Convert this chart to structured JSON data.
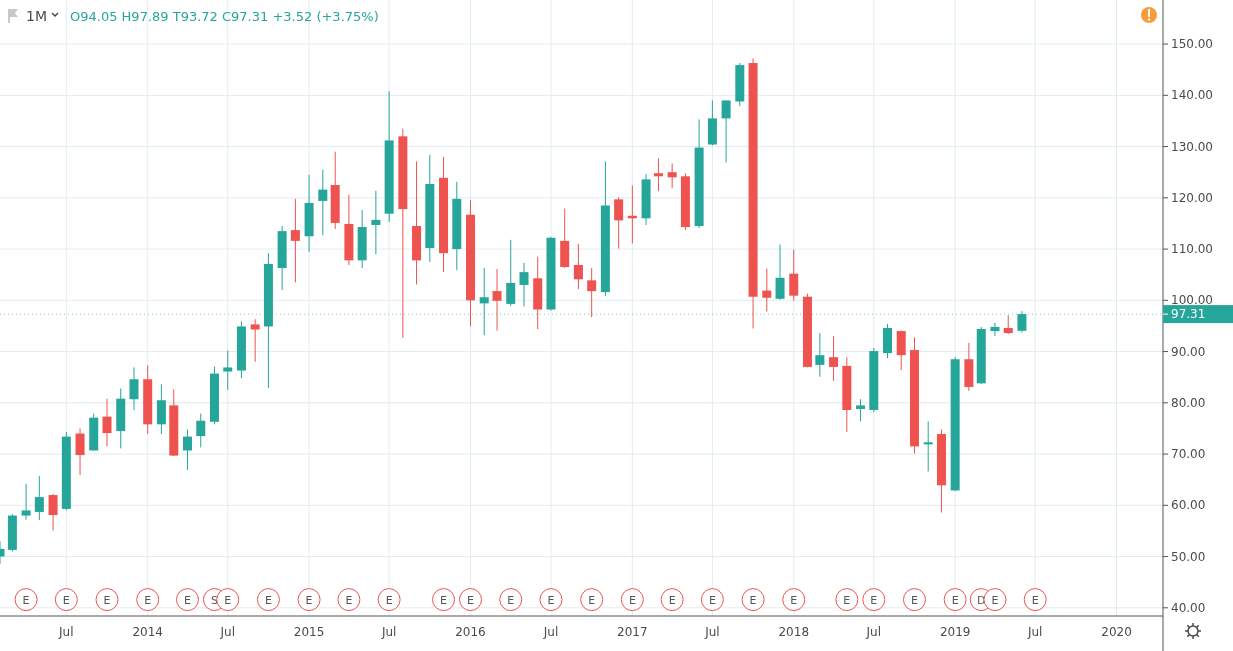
{
  "chart_data": {
    "type": "candlestick",
    "title": "1M",
    "subtitle": "O94.05 H97.89 T93.72 C97.31 +3.52 (+3.75%)",
    "x": [
      "2013-02",
      "2013-03",
      "2013-04",
      "2013-05",
      "2013-06",
      "2013-07",
      "2013-08",
      "2013-09",
      "2013-10",
      "2013-11",
      "2013-12",
      "2014-01",
      "2014-02",
      "2014-03",
      "2014-04",
      "2014-05",
      "2014-06",
      "2014-07",
      "2014-08",
      "2014-09",
      "2014-10",
      "2014-11",
      "2014-12",
      "2015-01",
      "2015-02",
      "2015-03",
      "2015-04",
      "2015-05",
      "2015-06",
      "2015-07",
      "2015-08",
      "2015-09",
      "2015-10",
      "2015-11",
      "2015-12",
      "2016-01",
      "2016-02",
      "2016-03",
      "2016-04",
      "2016-05",
      "2016-06",
      "2016-07",
      "2016-08",
      "2016-09",
      "2016-10",
      "2016-11",
      "2016-12",
      "2017-01",
      "2017-02",
      "2017-03",
      "2017-04",
      "2017-05",
      "2017-06",
      "2017-07",
      "2017-08",
      "2017-09",
      "2017-10",
      "2017-11",
      "2017-12",
      "2018-01",
      "2018-02",
      "2018-03",
      "2018-04",
      "2018-05",
      "2018-06",
      "2018-07",
      "2018-08",
      "2018-09",
      "2018-10",
      "2018-11",
      "2018-12",
      "2019-01",
      "2019-02",
      "2019-03",
      "2019-04",
      "2019-05",
      "2019-06"
    ],
    "ohlc": [
      [
        50,
        53,
        48.6,
        51.5
      ],
      [
        51.3,
        58.3,
        51,
        58
      ],
      [
        58,
        64.2,
        57.2,
        59
      ],
      [
        58.7,
        65.7,
        57.1,
        61.6
      ],
      [
        62,
        62.2,
        55.1,
        58.1
      ],
      [
        59.3,
        74.3,
        59,
        73.4
      ],
      [
        74,
        75,
        65.9,
        69.8
      ],
      [
        70.7,
        77.9,
        70.7,
        77.1
      ],
      [
        77.3,
        80.8,
        71.5,
        74.1
      ],
      [
        74.5,
        82.8,
        71.1,
        80.8
      ],
      [
        80.7,
        86.9,
        78.6,
        84.6
      ],
      [
        84.6,
        87.3,
        73.9,
        75.8
      ],
      [
        75.8,
        83.6,
        73.9,
        80.5
      ],
      [
        79.5,
        82.6,
        69.6,
        69.7
      ],
      [
        70.7,
        74.8,
        66.9,
        73.4
      ],
      [
        73.5,
        77.9,
        71.3,
        76.5
      ],
      [
        76.3,
        87.1,
        75.8,
        85.7
      ],
      [
        86.1,
        90.2,
        82.5,
        86.9
      ],
      [
        86.3,
        95.9,
        84.8,
        94.9
      ],
      [
        95.3,
        96.3,
        88,
        94.3
      ],
      [
        94.9,
        109.2,
        82.9,
        107.1
      ],
      [
        106.3,
        114.5,
        102,
        113.5
      ],
      [
        113.7,
        119.8,
        103.5,
        111.6
      ],
      [
        112.5,
        124.5,
        109.4,
        119
      ],
      [
        119.4,
        125.5,
        112.7,
        121.6
      ],
      [
        122.5,
        129,
        113.9,
        115.1
      ],
      [
        114.9,
        120.6,
        106.9,
        107.8
      ],
      [
        107.8,
        117.6,
        106.3,
        114.3
      ],
      [
        114.7,
        121.4,
        109,
        115.7
      ],
      [
        116.9,
        140.8,
        115.3,
        131.2
      ],
      [
        132,
        133.5,
        92.7,
        117.8
      ],
      [
        114.5,
        127.1,
        103.1,
        107.8
      ],
      [
        110.2,
        128.4,
        107.5,
        122.7
      ],
      [
        123.9,
        128,
        105.5,
        109.2
      ],
      [
        110,
        123.1,
        105.9,
        119.8
      ],
      [
        116.7,
        119.6,
        94.9,
        100
      ],
      [
        99.4,
        106.3,
        93.2,
        100.6
      ],
      [
        101.8,
        106.1,
        94.1,
        99.9
      ],
      [
        99.3,
        111.8,
        98.9,
        103.4
      ],
      [
        103,
        107.3,
        98.8,
        105.5
      ],
      [
        104.3,
        108.5,
        94.4,
        98.2
      ],
      [
        98.2,
        112.4,
        98,
        112.2
      ],
      [
        111.6,
        117.9,
        106.3,
        106.5
      ],
      [
        106.9,
        111,
        102.2,
        104.1
      ],
      [
        103.9,
        106.3,
        96.7,
        101.8
      ],
      [
        101.6,
        127.1,
        100.8,
        118.5
      ],
      [
        119.7,
        120.1,
        110.1,
        115.6
      ],
      [
        116.5,
        122.4,
        111.1,
        116
      ],
      [
        116,
        124.6,
        114.7,
        123.6
      ],
      [
        124.8,
        127.7,
        121.3,
        124.2
      ],
      [
        125,
        126.7,
        121.9,
        124
      ],
      [
        124.2,
        124.8,
        113.7,
        114.3
      ],
      [
        114.5,
        135.3,
        114.1,
        129.8
      ],
      [
        130.4,
        139,
        130.2,
        135.5
      ],
      [
        135.5,
        139,
        126.9,
        139
      ],
      [
        138.8,
        146.3,
        137.9,
        145.9
      ],
      [
        146.3,
        147.2,
        94.5,
        100.7
      ],
      [
        101.9,
        106.2,
        97.8,
        100.5
      ],
      [
        100.3,
        110.9,
        100.1,
        104.4
      ],
      [
        105.2,
        109.9,
        99.9,
        100.9
      ],
      [
        100.7,
        101.3,
        86.9,
        87
      ],
      [
        87.4,
        93.6,
        85.1,
        89.3
      ],
      [
        88.9,
        93,
        84.3,
        87
      ],
      [
        87.2,
        88.9,
        74.3,
        78.6
      ],
      [
        78.8,
        80.7,
        76.4,
        79.5
      ],
      [
        78.6,
        90.7,
        78.2,
        90.1
      ],
      [
        89.7,
        95.4,
        88.7,
        94.6
      ],
      [
        94,
        94.1,
        86.4,
        89.3
      ],
      [
        90.3,
        92.8,
        70.1,
        71.5
      ],
      [
        71.9,
        76.4,
        66.6,
        72.3
      ],
      [
        73.9,
        74.8,
        58.6,
        63.9
      ],
      [
        62.9,
        88.9,
        62.8,
        88.5
      ],
      [
        88.5,
        91.7,
        82.3,
        83.1
      ],
      [
        83.8,
        94.8,
        83.7,
        94.4
      ],
      [
        94,
        95.6,
        93,
        94.8
      ],
      [
        94.6,
        97.1,
        93.4,
        93.6
      ],
      [
        94.05,
        97.89,
        93.72,
        97.31
      ]
    ],
    "xlim": [
      "2013-02-01",
      "2020-04-15"
    ],
    "xticks": [
      {
        "value": "2013-07",
        "label": "Jul"
      },
      {
        "value": "2014-01",
        "label": "2014"
      },
      {
        "value": "2014-07",
        "label": "Jul"
      },
      {
        "value": "2015-01",
        "label": "2015"
      },
      {
        "value": "2015-07",
        "label": "Jul"
      },
      {
        "value": "2016-01",
        "label": "2016"
      },
      {
        "value": "2016-07",
        "label": "Jul"
      },
      {
        "value": "2017-01",
        "label": "2017"
      },
      {
        "value": "2017-07",
        "label": "Jul"
      },
      {
        "value": "2018-01",
        "label": "2018"
      },
      {
        "value": "2018-07",
        "label": "Jul"
      },
      {
        "value": "2019-01",
        "label": "2019"
      },
      {
        "value": "2019-07",
        "label": "Jul"
      },
      {
        "value": "2020-01",
        "label": "2020"
      }
    ],
    "ylim": [
      38.4,
      158.6
    ],
    "yticks": [
      {
        "value": 40,
        "label": "40.00"
      },
      {
        "value": 50,
        "label": "50.00"
      },
      {
        "value": 60,
        "label": "60.00"
      },
      {
        "value": 70,
        "label": "70.00"
      },
      {
        "value": 80,
        "label": "80.00"
      },
      {
        "value": 90,
        "label": "90.00"
      },
      {
        "value": 100,
        "label": "100.00"
      },
      {
        "value": 110,
        "label": "110.00"
      },
      {
        "value": 120,
        "label": "120.00"
      },
      {
        "value": 130,
        "label": "130.00"
      },
      {
        "value": 140,
        "label": "140.00"
      },
      {
        "value": 150,
        "label": "150.00"
      }
    ],
    "grid": true,
    "ref_lines": [
      {
        "axis": "y",
        "value": 97.31,
        "label": "97.31",
        "color": "#26a69a",
        "line_style": "dotted"
      }
    ],
    "annotations": [
      {
        "text": "E",
        "x": "2013-04",
        "y": 41.6
      },
      {
        "text": "E",
        "x": "2013-07",
        "y": 41.6
      },
      {
        "text": "E",
        "x": "2013-10",
        "y": 41.6
      },
      {
        "text": "E",
        "x": "2014-01",
        "y": 41.6
      },
      {
        "text": "E",
        "x": "2014-04",
        "y": 41.6
      },
      {
        "text": "S",
        "x": "2014-06",
        "y": 41.6
      },
      {
        "text": "E",
        "x": "2014-07",
        "y": 41.6
      },
      {
        "text": "E",
        "x": "2014-10",
        "y": 41.6
      },
      {
        "text": "E",
        "x": "2015-01",
        "y": 41.6
      },
      {
        "text": "E",
        "x": "2015-04",
        "y": 41.6
      },
      {
        "text": "E",
        "x": "2015-07",
        "y": 41.6
      },
      {
        "text": "E",
        "x": "2015-11",
        "y": 41.6
      },
      {
        "text": "E",
        "x": "2016-01",
        "y": 41.6
      },
      {
        "text": "E",
        "x": "2016-04",
        "y": 41.6
      },
      {
        "text": "E",
        "x": "2016-07",
        "y": 41.6
      },
      {
        "text": "E",
        "x": "2016-10",
        "y": 41.6
      },
      {
        "text": "E",
        "x": "2017-01",
        "y": 41.6
      },
      {
        "text": "E",
        "x": "2017-04",
        "y": 41.6
      },
      {
        "text": "E",
        "x": "2017-07",
        "y": 41.6
      },
      {
        "text": "E",
        "x": "2017-10",
        "y": 41.6
      },
      {
        "text": "E",
        "x": "2018-01",
        "y": 41.6
      },
      {
        "text": "E",
        "x": "2018-05",
        "y": 41.6
      },
      {
        "text": "E",
        "x": "2018-07",
        "y": 41.6
      },
      {
        "text": "E",
        "x": "2018-10",
        "y": 41.6
      },
      {
        "text": "E",
        "x": "2019-01",
        "y": 41.6
      },
      {
        "text": "D",
        "x": "2019-03",
        "y": 41.6
      },
      {
        "text": "E",
        "x": "2019-04",
        "y": 41.6
      },
      {
        "text": "E",
        "x": "2019-07",
        "y": 41.6
      }
    ]
  }
}
